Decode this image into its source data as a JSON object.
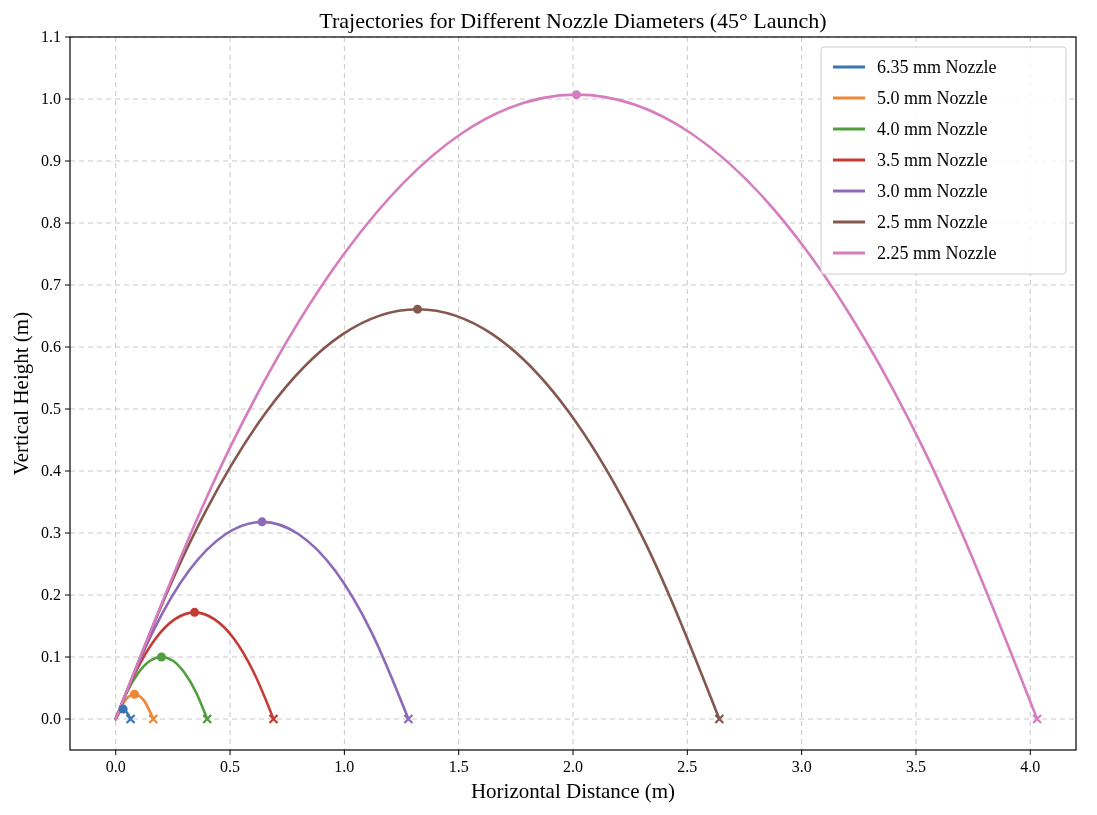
{
  "chart_data": {
    "type": "line",
    "title": "Trajectories for Different Nozzle Diameters (45° Launch)",
    "xlabel": "Horizontal Distance (m)",
    "ylabel": "Vertical Height (m)",
    "xlim": [
      -0.2,
      4.2
    ],
    "ylim": [
      -0.05,
      1.1
    ],
    "xticks": [
      {
        "value": 0,
        "label": "0.0"
      },
      {
        "value": 0.5,
        "label": "0.5"
      },
      {
        "value": 1,
        "label": "1.0"
      },
      {
        "value": 1.5,
        "label": "1.5"
      },
      {
        "value": 2,
        "label": "2.0"
      },
      {
        "value": 2.5,
        "label": "2.5"
      },
      {
        "value": 3,
        "label": "3.0"
      },
      {
        "value": 3.5,
        "label": "3.5"
      },
      {
        "value": 4,
        "label": "4.0"
      }
    ],
    "yticks": [
      {
        "value": 0,
        "label": "0.0"
      },
      {
        "value": 0.1,
        "label": "0.1"
      },
      {
        "value": 0.2,
        "label": "0.2"
      },
      {
        "value": 0.3,
        "label": "0.3"
      },
      {
        "value": 0.4,
        "label": "0.4"
      },
      {
        "value": 0.5,
        "label": "0.5"
      },
      {
        "value": 0.6,
        "label": "0.6"
      },
      {
        "value": 0.7,
        "label": "0.7"
      },
      {
        "value": 0.8,
        "label": "0.8"
      },
      {
        "value": 0.9,
        "label": "0.9"
      },
      {
        "value": 1,
        "label": "1.0"
      },
      {
        "value": 1.1,
        "label": "1.1"
      }
    ],
    "grid": true,
    "legend": "top right",
    "line_style": "solid",
    "marker": "none",
    "series": [
      {
        "name": "6.35 mm Nozzle",
        "color": "#3a75b0",
        "x": [
          0,
          0.0325,
          0.065
        ],
        "values": [
          0,
          0.016,
          0
        ]
      },
      {
        "name": "5.0 mm Nozzle",
        "color": "#ef8636",
        "x": [
          0,
          0.041,
          0.082,
          0.123,
          0.164
        ],
        "values": [
          0,
          0.03,
          0.04,
          0.03,
          0
        ]
      },
      {
        "name": "4.0 mm Nozzle",
        "color": "#519e3e",
        "x": [
          0,
          0.05,
          0.1,
          0.15,
          0.2,
          0.25,
          0.3,
          0.35,
          0.4
        ],
        "values": [
          0,
          0.044,
          0.075,
          0.094,
          0.1,
          0.094,
          0.075,
          0.044,
          0
        ]
      },
      {
        "name": "3.5 mm Nozzle",
        "color": "#c53a32",
        "x": [
          0,
          0.086,
          0.173,
          0.259,
          0.345,
          0.431,
          0.518,
          0.604,
          0.69
        ],
        "values": [
          0,
          0.075,
          0.129,
          0.161,
          0.172,
          0.161,
          0.129,
          0.075,
          0
        ]
      },
      {
        "name": "3.0 mm Nozzle",
        "color": "#8d69b8",
        "x": [
          0,
          0.16,
          0.32,
          0.48,
          0.64,
          0.8,
          0.96,
          1.12,
          1.28
        ],
        "values": [
          0,
          0.139,
          0.239,
          0.298,
          0.318,
          0.298,
          0.239,
          0.139,
          0
        ]
      },
      {
        "name": "2.5 mm Nozzle",
        "color": "#84584e",
        "x": [
          0,
          0.33,
          0.66,
          0.99,
          1.32,
          1.65,
          1.98,
          2.31,
          2.64
        ],
        "values": [
          0,
          0.289,
          0.496,
          0.62,
          0.661,
          0.62,
          0.496,
          0.289,
          0
        ]
      },
      {
        "name": "2.25 mm Nozzle",
        "color": "#d57dbf",
        "x": [
          0,
          0.504,
          1.008,
          1.511,
          2.015,
          2.519,
          3.023,
          3.526,
          4.03
        ],
        "values": [
          0,
          0.441,
          0.755,
          0.944,
          1.007,
          0.944,
          0.755,
          0.441,
          0
        ]
      },
      {
        "type": "scatter",
        "marker": "circle",
        "x": [
          0.0325,
          0.082,
          0.2,
          0.345,
          0.64,
          1.32,
          2.015
        ],
        "values": [
          0.016,
          0.04,
          0.1,
          0.172,
          0.318,
          0.661,
          1.007
        ],
        "colors": [
          "#3a75b0",
          "#ef8636",
          "#519e3e",
          "#c53a32",
          "#8d69b8",
          "#84584e",
          "#d57dbf"
        ]
      },
      {
        "type": "scatter",
        "marker": "cross",
        "x": [
          0.065,
          0.164,
          0.4,
          0.69,
          1.28,
          2.64,
          4.03
        ],
        "values": [
          0,
          0,
          0,
          0,
          0,
          0,
          0
        ],
        "colors": [
          "#3a75b0",
          "#ef8636",
          "#519e3e",
          "#c53a32",
          "#8d69b8",
          "#84584e",
          "#d57dbf"
        ]
      }
    ]
  }
}
